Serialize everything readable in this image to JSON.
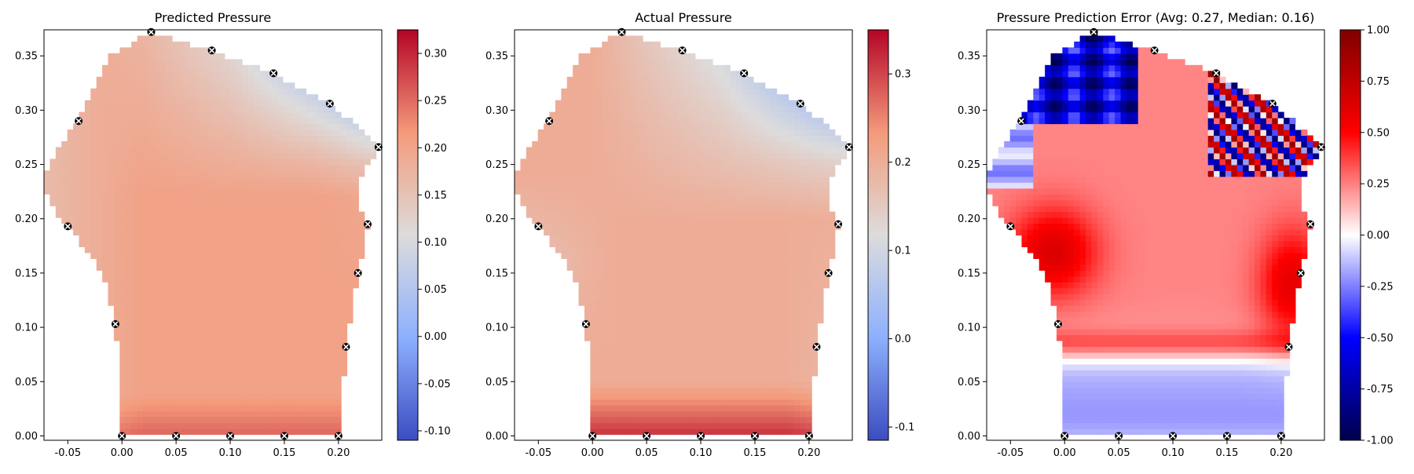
{
  "chart_data": [
    {
      "type": "heatmap",
      "title": "Predicted Pressure",
      "xlabel": "",
      "ylabel": "",
      "xlim": [
        -0.072,
        0.24
      ],
      "ylim": [
        -0.004,
        0.374
      ],
      "x_ticks": [
        "-0.05",
        "0.00",
        "0.05",
        "0.10",
        "0.15",
        "0.20"
      ],
      "y_ticks": [
        "0.00",
        "0.05",
        "0.10",
        "0.15",
        "0.20",
        "0.25",
        "0.30",
        "0.35"
      ],
      "colormap": "coolwarm",
      "colorbar": {
        "min": -0.11,
        "max": 0.325,
        "ticks": [
          "-0.10",
          "-0.05",
          "0.00",
          "0.05",
          "0.10",
          "0.15",
          "0.20",
          "0.25",
          "0.30"
        ]
      },
      "field": "predicted"
    },
    {
      "type": "heatmap",
      "title": "Actual Pressure",
      "xlabel": "",
      "ylabel": "",
      "xlim": [
        -0.072,
        0.24
      ],
      "ylim": [
        -0.004,
        0.374
      ],
      "x_ticks": [
        "-0.05",
        "0.00",
        "0.05",
        "0.10",
        "0.15",
        "0.20"
      ],
      "y_ticks": [
        "0.00",
        "0.05",
        "0.10",
        "0.15",
        "0.20",
        "0.25",
        "0.30",
        "0.35"
      ],
      "colormap": "coolwarm",
      "colorbar": {
        "min": -0.115,
        "max": 0.35,
        "ticks": [
          "-0.1",
          "0.0",
          "0.1",
          "0.2",
          "0.3"
        ]
      },
      "field": "actual"
    },
    {
      "type": "heatmap",
      "title": "Pressure Prediction Error (Avg: 0.27, Median: 0.16)",
      "xlabel": "",
      "ylabel": "",
      "xlim": [
        -0.072,
        0.24
      ],
      "ylim": [
        -0.004,
        0.374
      ],
      "x_ticks": [
        "-0.05",
        "0.00",
        "0.05",
        "0.10",
        "0.15",
        "0.20"
      ],
      "y_ticks": [
        "0.00",
        "0.05",
        "0.10",
        "0.15",
        "0.20",
        "0.25",
        "0.30",
        "0.35"
      ],
      "colormap": "seismic",
      "colorbar": {
        "min": -1.0,
        "max": 1.0,
        "ticks": [
          "-1.00",
          "-0.75",
          "-0.50",
          "-0.25",
          "0.00",
          "0.25",
          "0.50",
          "0.75",
          "1.00"
        ]
      },
      "field": "error"
    }
  ],
  "shape": {
    "outline": [
      [
        0.0,
        0.0
      ],
      [
        0.05,
        0.0
      ],
      [
        0.1,
        0.0
      ],
      [
        0.15,
        0.0
      ],
      [
        0.2,
        0.0
      ],
      [
        0.204,
        0.04
      ],
      [
        0.207,
        0.082
      ],
      [
        0.213,
        0.118
      ],
      [
        0.218,
        0.15
      ],
      [
        0.223,
        0.175
      ],
      [
        0.227,
        0.195
      ],
      [
        0.218,
        0.21
      ],
      [
        0.216,
        0.228
      ],
      [
        0.226,
        0.248
      ],
      [
        0.237,
        0.266
      ],
      [
        0.219,
        0.283
      ],
      [
        0.192,
        0.306
      ],
      [
        0.14,
        0.334
      ],
      [
        0.083,
        0.355
      ],
      [
        0.027,
        0.372
      ],
      [
        -0.01,
        0.35
      ],
      [
        -0.04,
        0.29
      ],
      [
        -0.062,
        0.262
      ],
      [
        -0.072,
        0.235
      ],
      [
        -0.068,
        0.215
      ],
      [
        -0.05,
        0.193
      ],
      [
        -0.03,
        0.168
      ],
      [
        -0.014,
        0.138
      ],
      [
        -0.006,
        0.103
      ],
      [
        -0.003,
        0.06
      ],
      [
        0.0,
        0.0
      ]
    ],
    "markers": [
      [
        0.0,
        0.0
      ],
      [
        0.05,
        0.0
      ],
      [
        0.1,
        0.0
      ],
      [
        0.15,
        0.0
      ],
      [
        0.2,
        0.0
      ],
      [
        0.207,
        0.082
      ],
      [
        0.218,
        0.15
      ],
      [
        0.227,
        0.195
      ],
      [
        0.237,
        0.266
      ],
      [
        0.192,
        0.306
      ],
      [
        0.14,
        0.334
      ],
      [
        0.083,
        0.355
      ],
      [
        0.027,
        0.372
      ],
      [
        -0.04,
        0.29
      ],
      [
        -0.05,
        0.193
      ],
      [
        -0.006,
        0.103
      ]
    ]
  }
}
